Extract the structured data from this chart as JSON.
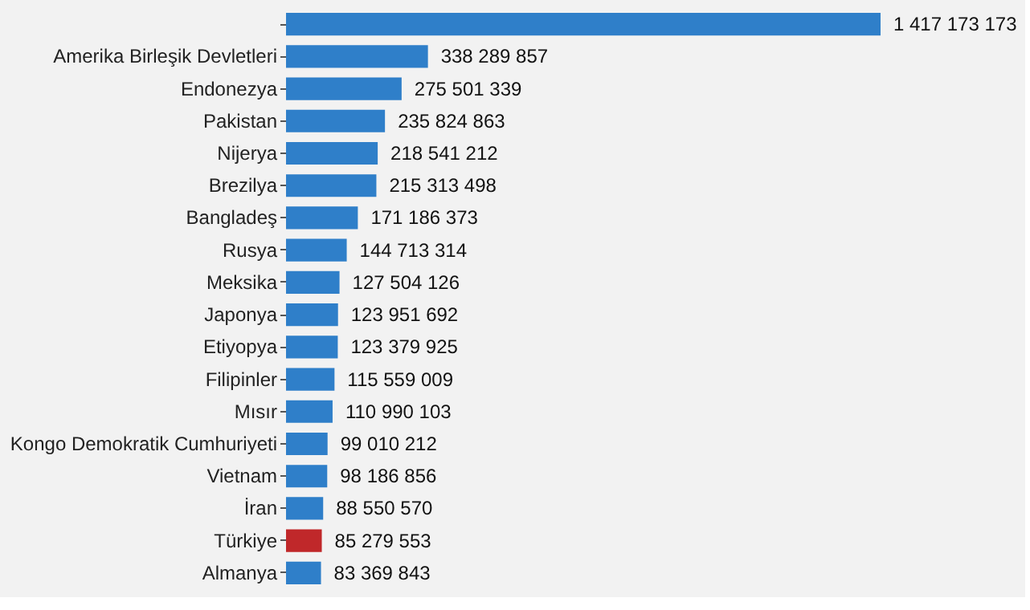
{
  "chart_data": {
    "type": "bar",
    "orientation": "horizontal",
    "categories": [
      null,
      "Amerika Birleşik Devletleri",
      "Endonezya",
      "Pakistan",
      "Nijerya",
      "Brezilya",
      "Bangladeş",
      "Rusya",
      "Meksika",
      "Japonya",
      "Etiyopya",
      "Filipinler",
      "Mısır",
      "Kongo Demokratik Cumhuriyeti",
      "Vietnam",
      "İran",
      "Türkiye",
      "Almanya"
    ],
    "values": [
      1417173173,
      338289857,
      275501339,
      235824863,
      218541212,
      215313498,
      171186373,
      144713314,
      127504126,
      123951692,
      123379925,
      115559009,
      110990103,
      99010212,
      98186856,
      88550570,
      85279553,
      83369843
    ],
    "value_labels": [
      "1 417 173 173",
      "338 289 857",
      "275 501 339",
      "235 824 863",
      "218 541 212",
      "215 313 498",
      "171 186 373",
      "144 713 314",
      "127 504 126",
      "123 951 692",
      "123 379 925",
      "115 559 009",
      "110 990 103",
      "99 010 212",
      "98 186 856",
      "88 550 570",
      "85 279 553",
      "83 369 843"
    ],
    "colors": [
      "#2f7fc9",
      "#2f7fc9",
      "#2f7fc9",
      "#2f7fc9",
      "#2f7fc9",
      "#2f7fc9",
      "#2f7fc9",
      "#2f7fc9",
      "#2f7fc9",
      "#2f7fc9",
      "#2f7fc9",
      "#2f7fc9",
      "#2f7fc9",
      "#2f7fc9",
      "#2f7fc9",
      "#2f7fc9",
      "#c0282a",
      "#2f7fc9"
    ],
    "grid": false
  }
}
